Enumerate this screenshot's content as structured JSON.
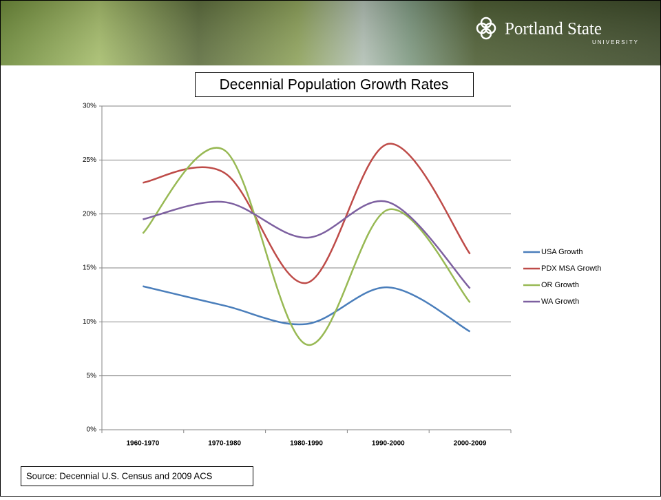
{
  "header": {
    "logo_title": "Portland State",
    "logo_subtitle": "UNIVERSITY"
  },
  "chart_data": {
    "type": "line",
    "title": "Decennial Population Growth Rates",
    "source": "Source: Decennial U.S. Census and 2009 ACS",
    "categories": [
      "1960-1970",
      "1970-1980",
      "1980-1990",
      "1990-2000",
      "2000-2009"
    ],
    "series": [
      {
        "name": "USA Growth",
        "color": "#4a7ebb",
        "values": [
          13.3,
          11.5,
          9.8,
          13.2,
          9.1
        ]
      },
      {
        "name": "PDX MSA Growth",
        "color": "#be4b48",
        "values": [
          22.9,
          23.8,
          13.6,
          26.5,
          16.3
        ]
      },
      {
        "name": "OR Growth",
        "color": "#98b954",
        "values": [
          18.2,
          25.9,
          7.9,
          20.4,
          11.8
        ]
      },
      {
        "name": "WA Growth",
        "color": "#7d60a0",
        "values": [
          19.5,
          21.1,
          17.8,
          21.1,
          13.1
        ]
      }
    ],
    "ylim": [
      0,
      30
    ],
    "yticks": [
      {
        "value": 0,
        "label": "0%"
      },
      {
        "value": 5,
        "label": "5%"
      },
      {
        "value": 10,
        "label": "10%"
      },
      {
        "value": 15,
        "label": "15%"
      },
      {
        "value": 20,
        "label": "20%"
      },
      {
        "value": 25,
        "label": "25%"
      },
      {
        "value": 30,
        "label": "30%"
      }
    ],
    "grid": true,
    "smooth": true,
    "legend": "right"
  }
}
